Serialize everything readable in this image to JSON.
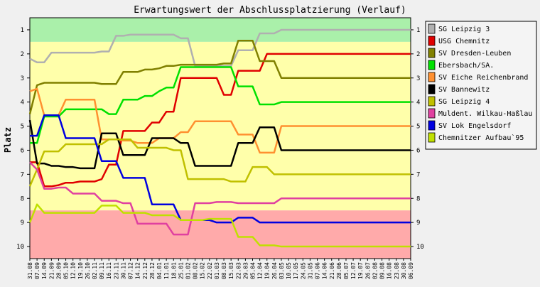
{
  "chart_data": {
    "type": "line",
    "title": "Erwartungswert der Abschlussplatzierung (Verlauf)",
    "xlabel": "",
    "ylabel": "Platz",
    "ylim": [
      10.5,
      0.5
    ],
    "y_ticks": [
      1,
      2,
      3,
      4,
      5,
      6,
      7,
      8,
      9,
      10
    ],
    "legend_position": "right",
    "grid": false,
    "background_bands": [
      {
        "from": 0.5,
        "to": 1.5,
        "color": "#aaf0aa"
      },
      {
        "from": 1.5,
        "to": 8.5,
        "color": "#ffffaa"
      },
      {
        "from": 8.5,
        "to": 10.5,
        "color": "#ffaaaa"
      }
    ],
    "x": [
      "31.08",
      "07.09",
      "14.09",
      "21.09",
      "28.09",
      "05.10",
      "12.10",
      "19.10",
      "26.10",
      "02.11",
      "09.11",
      "16.11",
      "23.11",
      "30.11",
      "07.12",
      "14.12",
      "21.12",
      "28.12",
      "04.01",
      "11.01",
      "18.01",
      "25.01",
      "01.02",
      "08.02",
      "15.02",
      "22.02",
      "01.03",
      "08.03",
      "15.03",
      "22.03",
      "29.03",
      "05.04",
      "12.04",
      "19.04",
      "26.04",
      "03.05",
      "10.05",
      "17.05",
      "24.05",
      "31.05",
      "07.06",
      "14.06",
      "21.06",
      "28.06",
      "05.07",
      "12.07",
      "19.07",
      "26.07",
      "02.08",
      "09.08",
      "16.08",
      "23.08",
      "30.08",
      "06.09"
    ],
    "series": [
      {
        "name": "SG Leipzig 3",
        "color": "#b0b0b0",
        "values": [
          2.2,
          2.35,
          2.35,
          1.95,
          1.95,
          1.95,
          1.95,
          1.95,
          1.95,
          1.95,
          1.9,
          1.9,
          1.25,
          1.25,
          1.2,
          1.2,
          1.2,
          1.2,
          1.2,
          1.2,
          1.2,
          1.35,
          1.35,
          2.5,
          2.5,
          2.5,
          2.5,
          2.5,
          2.5,
          1.85,
          1.85,
          1.85,
          1.15,
          1.15,
          1.15,
          1.0,
          1.0,
          1.0,
          1.0,
          1.0,
          1.0,
          1.0,
          1.0,
          1.0,
          1.0,
          1.0,
          1.0,
          1.0,
          1.0,
          1.0,
          1.0,
          1.0,
          1.0,
          1.0
        ]
      },
      {
        "name": "USG Chemnitz",
        "color": "#e00000",
        "values": [
          6.5,
          6.5,
          7.5,
          7.5,
          7.45,
          7.35,
          7.35,
          7.3,
          7.3,
          7.3,
          7.2,
          6.6,
          6.6,
          5.2,
          5.2,
          5.2,
          5.2,
          4.85,
          4.85,
          4.4,
          4.4,
          3.0,
          3.0,
          3.0,
          3.0,
          3.0,
          3.0,
          3.7,
          3.7,
          2.7,
          2.7,
          2.7,
          2.7,
          2.0,
          2.0,
          2.0,
          2.0,
          2.0,
          2.0,
          2.0,
          2.0,
          2.0,
          2.0,
          2.0,
          2.0,
          2.0,
          2.0,
          2.0,
          2.0,
          2.0,
          2.0,
          2.0,
          2.0,
          2.0
        ]
      },
      {
        "name": "SV Dresden-Leuben",
        "color": "#808000",
        "values": [
          4.5,
          3.3,
          3.2,
          3.2,
          3.2,
          3.2,
          3.2,
          3.2,
          3.2,
          3.2,
          3.25,
          3.25,
          3.25,
          2.75,
          2.75,
          2.75,
          2.65,
          2.65,
          2.6,
          2.5,
          2.5,
          2.45,
          2.45,
          2.45,
          2.45,
          2.45,
          2.45,
          2.4,
          2.4,
          1.45,
          1.45,
          1.45,
          2.3,
          2.3,
          2.3,
          3.0,
          3.0,
          3.0,
          3.0,
          3.0,
          3.0,
          3.0,
          3.0,
          3.0,
          3.0,
          3.0,
          3.0,
          3.0,
          3.0,
          3.0,
          3.0,
          3.0,
          3.0,
          3.0
        ]
      },
      {
        "name": "Ebersbach/SA.",
        "color": "#00e000",
        "values": [
          5.7,
          5.7,
          4.6,
          4.6,
          4.6,
          4.3,
          4.3,
          4.3,
          4.3,
          4.3,
          4.3,
          4.5,
          4.5,
          3.9,
          3.9,
          3.9,
          3.75,
          3.75,
          3.55,
          3.4,
          3.4,
          2.55,
          2.55,
          2.55,
          2.55,
          2.55,
          2.55,
          2.55,
          2.55,
          3.35,
          3.35,
          3.35,
          4.1,
          4.1,
          4.1,
          4.0,
          4.0,
          4.0,
          4.0,
          4.0,
          4.0,
          4.0,
          4.0,
          4.0,
          4.0,
          4.0,
          4.0,
          4.0,
          4.0,
          4.0,
          4.0,
          4.0,
          4.0,
          4.0
        ]
      },
      {
        "name": "SV Eiche Reichenbrand",
        "color": "#ff9030",
        "values": [
          3.55,
          3.45,
          4.55,
          4.55,
          4.55,
          3.9,
          3.9,
          3.9,
          3.9,
          3.9,
          5.55,
          5.55,
          5.55,
          5.6,
          5.6,
          5.7,
          5.7,
          5.7,
          5.5,
          5.5,
          5.5,
          5.25,
          5.25,
          4.8,
          4.8,
          4.8,
          4.8,
          4.8,
          4.8,
          5.35,
          5.35,
          5.35,
          6.1,
          6.1,
          6.1,
          5.0,
          5.0,
          5.0,
          5.0,
          5.0,
          5.0,
          5.0,
          5.0,
          5.0,
          5.0,
          5.0,
          5.0,
          5.0,
          5.0,
          5.0,
          5.0,
          5.0,
          5.0,
          5.0
        ]
      },
      {
        "name": "SV Bannewitz",
        "color": "#000000",
        "values": [
          4.75,
          6.55,
          6.55,
          6.65,
          6.65,
          6.7,
          6.7,
          6.75,
          6.75,
          6.75,
          5.3,
          5.3,
          5.3,
          6.2,
          6.2,
          6.2,
          6.2,
          5.5,
          5.5,
          5.5,
          5.5,
          5.7,
          5.7,
          6.65,
          6.65,
          6.65,
          6.65,
          6.65,
          6.65,
          5.7,
          5.7,
          5.7,
          5.05,
          5.05,
          5.05,
          6.0,
          6.0,
          6.0,
          6.0,
          6.0,
          6.0,
          6.0,
          6.0,
          6.0,
          6.0,
          6.0,
          6.0,
          6.0,
          6.0,
          6.0,
          6.0,
          6.0,
          6.0,
          6.0
        ]
      },
      {
        "name": "SG Leipzig 4",
        "color": "#c0c000",
        "values": [
          7.5,
          6.8,
          6.05,
          6.05,
          6.05,
          5.75,
          5.75,
          5.75,
          5.75,
          5.75,
          5.75,
          5.55,
          5.55,
          5.55,
          5.55,
          5.9,
          5.9,
          5.9,
          5.9,
          5.9,
          6.0,
          6.0,
          7.2,
          7.2,
          7.2,
          7.2,
          7.2,
          7.2,
          7.3,
          7.3,
          7.3,
          6.7,
          6.7,
          6.7,
          7.0,
          7.0,
          7.0,
          7.0,
          7.0,
          7.0,
          7.0,
          7.0,
          7.0,
          7.0,
          7.0,
          7.0,
          7.0,
          7.0,
          7.0,
          7.0,
          7.0,
          7.0,
          7.0,
          7.0
        ]
      },
      {
        "name": "Muldent. Wilkau-Haßlau",
        "color": "#e040a0",
        "values": [
          6.5,
          6.8,
          7.6,
          7.6,
          7.55,
          7.55,
          7.8,
          7.8,
          7.8,
          7.8,
          8.1,
          8.1,
          8.1,
          8.2,
          8.2,
          9.05,
          9.05,
          9.05,
          9.05,
          9.05,
          9.5,
          9.5,
          9.5,
          8.2,
          8.2,
          8.2,
          8.15,
          8.15,
          8.15,
          8.2,
          8.2,
          8.2,
          8.2,
          8.2,
          8.2,
          8.0,
          8.0,
          8.0,
          8.0,
          8.0,
          8.0,
          8.0,
          8.0,
          8.0,
          8.0,
          8.0,
          8.0,
          8.0,
          8.0,
          8.0,
          8.0,
          8.0,
          8.0,
          8.0
        ]
      },
      {
        "name": "SV Lok Engelsdorf",
        "color": "#0000e0",
        "values": [
          5.4,
          5.4,
          4.55,
          4.55,
          4.55,
          5.5,
          5.5,
          5.5,
          5.5,
          5.5,
          6.45,
          6.45,
          6.45,
          7.15,
          7.15,
          7.15,
          7.15,
          8.25,
          8.25,
          8.25,
          8.25,
          8.9,
          8.9,
          8.9,
          8.9,
          8.9,
          9.0,
          9.0,
          9.0,
          8.8,
          8.8,
          8.8,
          9.0,
          9.0,
          9.0,
          9.0,
          9.0,
          9.0,
          9.0,
          9.0,
          9.0,
          9.0,
          9.0,
          9.0,
          9.0,
          9.0,
          9.0,
          9.0,
          9.0,
          9.0,
          9.0,
          9.0,
          9.0,
          9.0
        ]
      },
      {
        "name": "Chemnitzer Aufbau`95",
        "color": "#c0e000",
        "values": [
          9.0,
          8.25,
          8.6,
          8.6,
          8.6,
          8.6,
          8.6,
          8.6,
          8.6,
          8.6,
          8.3,
          8.3,
          8.3,
          8.6,
          8.6,
          8.6,
          8.6,
          8.7,
          8.7,
          8.7,
          8.7,
          8.9,
          8.9,
          8.9,
          8.9,
          8.85,
          8.85,
          8.85,
          8.85,
          9.6,
          9.6,
          9.6,
          9.95,
          9.95,
          9.95,
          10.0,
          10.0,
          10.0,
          10.0,
          10.0,
          10.0,
          10.0,
          10.0,
          10.0,
          10.0,
          10.0,
          10.0,
          10.0,
          10.0,
          10.0,
          10.0,
          10.0,
          10.0,
          10.0
        ]
      }
    ]
  }
}
